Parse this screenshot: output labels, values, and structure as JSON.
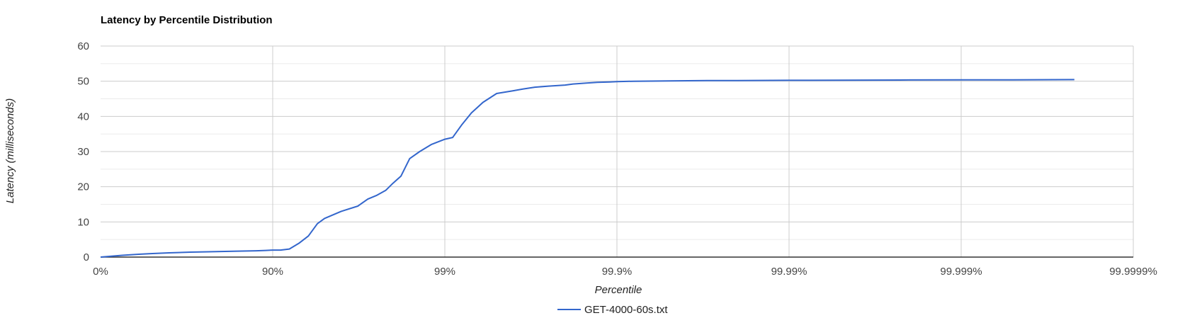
{
  "chart_data": {
    "type": "line",
    "title": "Latency by Percentile Distribution",
    "xlabel": "Percentile",
    "ylabel": "Latency (milliseconds)",
    "x_scale": "log10(1/(1-percentile))",
    "x_ticks": [
      "0%",
      "90%",
      "99%",
      "99.9%",
      "99.99%",
      "99.999%",
      "99.9999%"
    ],
    "y_ticks": [
      "0",
      "10",
      "20",
      "30",
      "40",
      "50",
      "60"
    ],
    "ylim": [
      0,
      60
    ],
    "grid": true,
    "legend_position": "bottom",
    "series": [
      {
        "name": "GET-4000-60s.txt",
        "color": "#3366cc",
        "x": [
          0,
          25,
          40,
          50,
          60,
          70,
          75,
          80,
          84,
          87.5,
          89,
          90,
          91,
          92,
          93,
          93.8,
          94.5,
          95,
          96,
          96.8,
          97.2,
          97.5,
          97.8,
          98,
          98.2,
          98.4,
          98.6,
          98.8,
          99,
          99.1,
          99.2,
          99.3,
          99.4,
          99.5,
          99.6,
          99.65,
          99.7,
          99.75,
          99.8,
          99.82,
          99.85,
          99.87,
          99.89,
          99.9,
          99.92,
          99.95,
          99.97,
          99.98,
          99.99,
          99.995,
          99.998,
          99.999,
          99.9995,
          99.99978
        ],
        "y": [
          0,
          0.5,
          0.8,
          1.0,
          1.2,
          1.4,
          1.5,
          1.6,
          1.7,
          1.8,
          1.9,
          2.0,
          2.0,
          2.3,
          4.0,
          6.0,
          9.5,
          11.0,
          13.0,
          14.5,
          16.5,
          17.5,
          19.0,
          21.0,
          23.0,
          28.0,
          30.0,
          32.0,
          33.5,
          34.0,
          37.5,
          41.0,
          44.0,
          46.5,
          47.3,
          47.8,
          48.3,
          48.6,
          48.9,
          49.2,
          49.5,
          49.7,
          49.8,
          49.9,
          50.0,
          50.1,
          50.2,
          50.2,
          50.25,
          50.3,
          50.35,
          50.4,
          50.4,
          50.45
        ]
      }
    ]
  }
}
